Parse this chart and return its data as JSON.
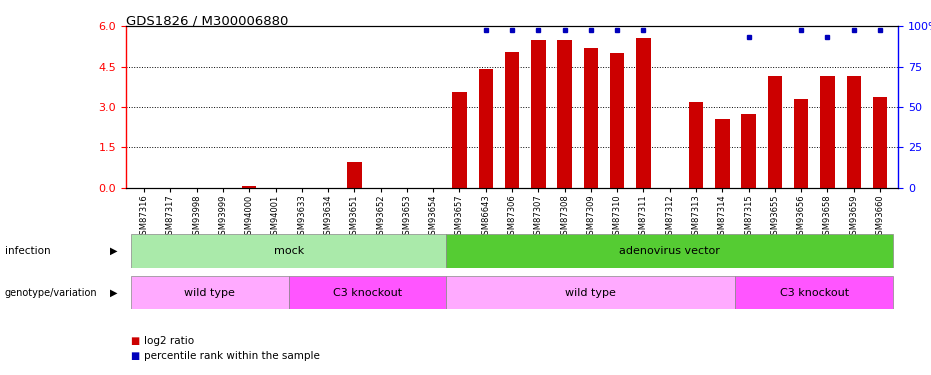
{
  "title": "GDS1826 / M300006880",
  "samples": [
    "GSM87316",
    "GSM87317",
    "GSM93998",
    "GSM93999",
    "GSM94000",
    "GSM94001",
    "GSM93633",
    "GSM93634",
    "GSM93651",
    "GSM93652",
    "GSM93653",
    "GSM93654",
    "GSM93657",
    "GSM86643",
    "GSM87306",
    "GSM87307",
    "GSM87308",
    "GSM87309",
    "GSM87310",
    "GSM87311",
    "GSM87312",
    "GSM87313",
    "GSM87314",
    "GSM87315",
    "GSM93655",
    "GSM93656",
    "GSM93658",
    "GSM93659",
    "GSM93660"
  ],
  "log2_ratio": [
    0.0,
    0.0,
    0.0,
    0.0,
    0.05,
    0.0,
    0.0,
    0.0,
    0.95,
    0.0,
    0.0,
    0.0,
    3.55,
    4.4,
    5.05,
    5.5,
    5.5,
    5.2,
    5.0,
    5.55,
    0.0,
    3.2,
    2.55,
    2.75,
    4.15,
    3.3,
    4.15,
    4.15,
    3.35
  ],
  "percentile_rank": [
    null,
    null,
    null,
    null,
    null,
    null,
    null,
    null,
    null,
    null,
    null,
    null,
    null,
    5.85,
    5.85,
    5.85,
    5.85,
    5.85,
    5.85,
    5.85,
    null,
    null,
    null,
    5.6,
    null,
    5.85,
    5.6,
    5.85,
    5.85
  ],
  "infection_groups": [
    {
      "label": "mock",
      "start": 0,
      "end": 11,
      "color": "#AAEAAA"
    },
    {
      "label": "adenovirus vector",
      "start": 12,
      "end": 28,
      "color": "#55CC33"
    }
  ],
  "genotype_groups": [
    {
      "label": "wild type",
      "start": 0,
      "end": 5,
      "color": "#FFAAFF"
    },
    {
      "label": "C3 knockout",
      "start": 6,
      "end": 11,
      "color": "#FF55FF"
    },
    {
      "label": "wild type",
      "start": 12,
      "end": 22,
      "color": "#FFAAFF"
    },
    {
      "label": "C3 knockout",
      "start": 23,
      "end": 28,
      "color": "#FF55FF"
    }
  ],
  "bar_color": "#CC0000",
  "dot_color": "#0000BB",
  "ylim_left": [
    0,
    6
  ],
  "ylim_right": [
    0,
    100
  ],
  "yticks_left": [
    0,
    1.5,
    3.0,
    4.5,
    6.0
  ],
  "yticks_right": [
    0,
    25,
    50,
    75,
    100
  ],
  "grid_lines": [
    1.5,
    3.0,
    4.5
  ],
  "legend_log2": "log2 ratio",
  "legend_pct": "percentile rank within the sample",
  "infection_label": "infection",
  "genotype_label": "genotype/variation"
}
